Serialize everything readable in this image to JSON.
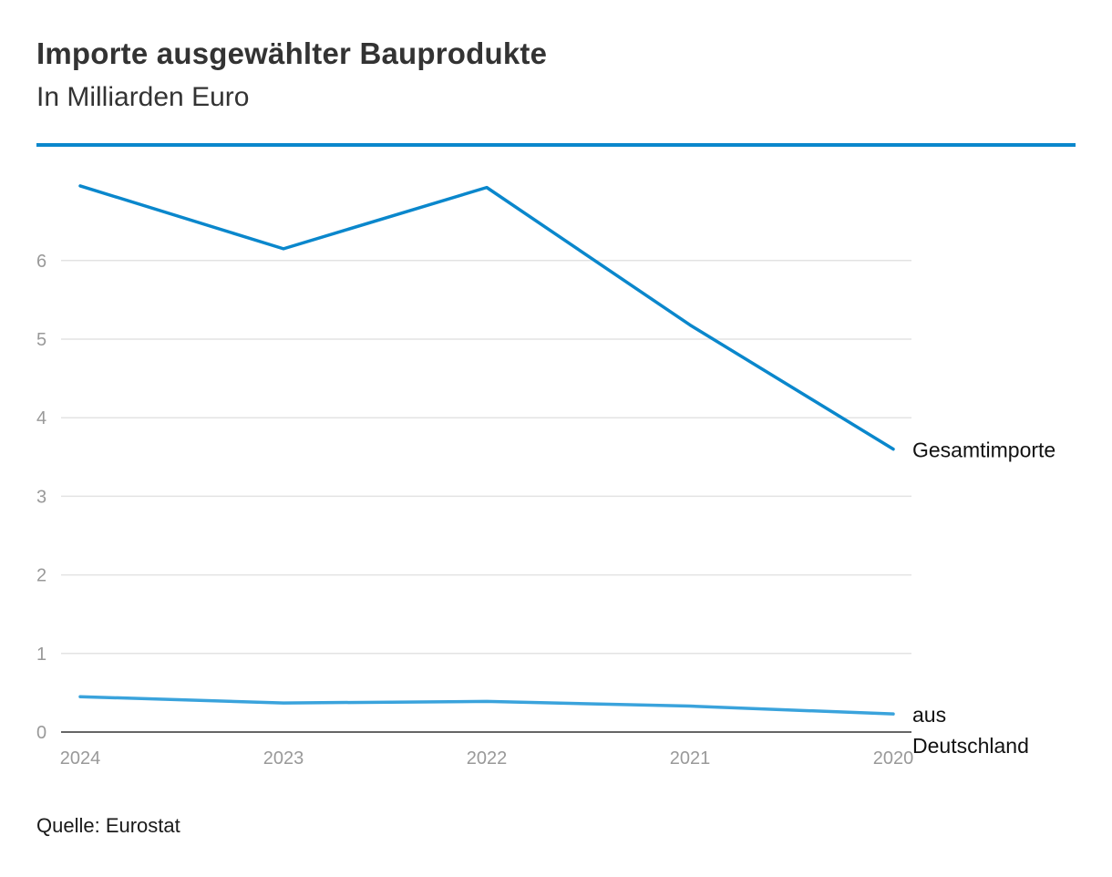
{
  "header": {
    "title": "Importe ausgewählter Bauprodukte",
    "subtitle": "In Milliarden Euro"
  },
  "footer": {
    "source": "Quelle: Eurostat"
  },
  "colors": {
    "accent": "#0a87cc",
    "series_primary": "#0a87cc",
    "series_secondary": "#3aa3dc",
    "grid": "#e3e3e3",
    "axis": "#333333",
    "tick_text": "#999999"
  },
  "chart_data": {
    "type": "line",
    "title": "Importe ausgewählter Bauprodukte",
    "subtitle": "In Milliarden Euro",
    "x": [
      "2024",
      "2023",
      "2022",
      "2021",
      "2020"
    ],
    "ylim": [
      0,
      7
    ],
    "yticks": [
      0,
      1,
      2,
      3,
      4,
      5,
      6
    ],
    "grid": true,
    "legend": "direct labels at line ends (right)",
    "series": [
      {
        "name": "Gesamtimporte",
        "label_lines": [
          "Gesamtimporte"
        ],
        "values": [
          6.95,
          6.15,
          6.93,
          5.18,
          3.6
        ]
      },
      {
        "name": "aus Deutschland",
        "label_lines": [
          "aus",
          "Deutschland"
        ],
        "values": [
          0.45,
          0.37,
          0.39,
          0.33,
          0.23
        ]
      }
    ]
  }
}
